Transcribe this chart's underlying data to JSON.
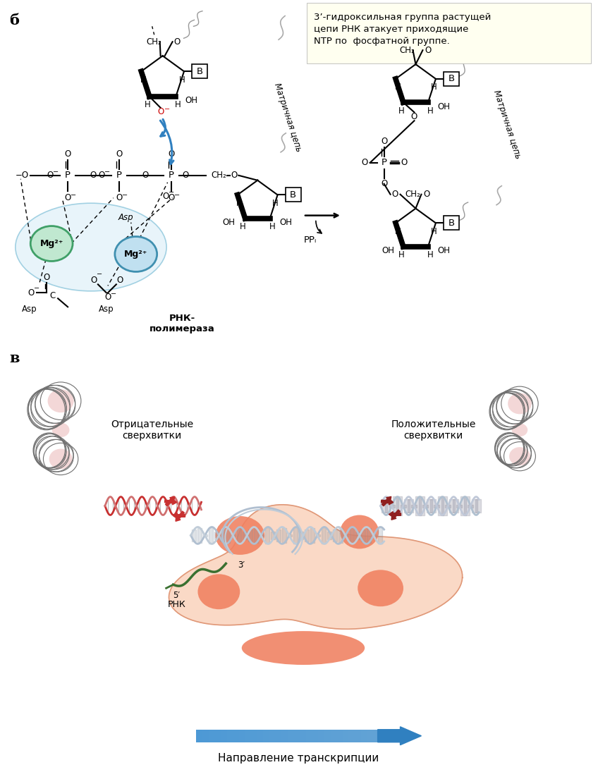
{
  "bg_color": "#ffffff",
  "label_b": "б",
  "label_v": "в",
  "annotation_box_text": "3’-гидроксильная группа растущей\nцепи РНК атакует приходящие\nNTP по  фосфатной группе.",
  "rna_polymerase_label": "РНК-\nполимераза",
  "ppi_label": "PPᵢ",
  "matrix_chain_label": "Матричная цепь",
  "mg_labels": [
    "Mg²⁺",
    "Mg²⁺"
  ],
  "bottom_label": "Направление транскрипции",
  "negative_supercoil_label": "Отрицательные\nсверхвитки",
  "positive_supercoil_label": "Положительные\nсверхвитки",
  "rna_label": "РНК",
  "five_prime": "5′",
  "three_prime": "3′",
  "b_label": "B",
  "ch2_label": "CH₂",
  "colors": {
    "salmon": "#f08060",
    "light_salmon": "#fad5c0",
    "pink_supercoil": "#e8b0b0",
    "dna_red": "#c03030",
    "rna_green": "#3a7030",
    "arrow_blue_end": "#3080c0",
    "dark_red": "#902020",
    "annotation_bg": "#fffff0",
    "mg_left_edge": "#40a068",
    "mg_left_fill": "#c0e8d0",
    "mg_right_edge": "#4090b0",
    "mg_right_fill": "#c0e0f0",
    "mg_oval_edge": "#80c0d8",
    "mg_oval_fill": "#dff0f8"
  }
}
